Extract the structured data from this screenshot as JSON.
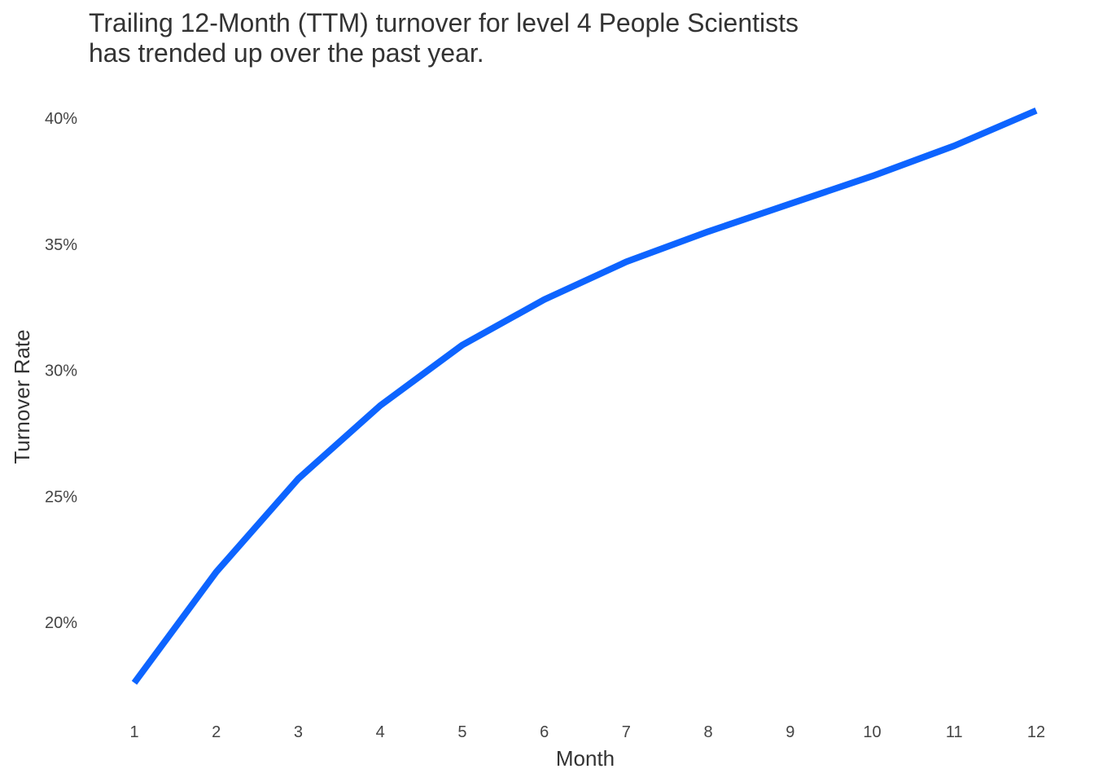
{
  "chart_data": {
    "type": "line",
    "title_lines": [
      "Trailing 12-Month (TTM) turnover for level 4 People Scientists",
      "has trended up over the past year."
    ],
    "xlabel": "Month",
    "ylabel": "Turnover Rate",
    "x": [
      1,
      2,
      3,
      4,
      5,
      6,
      7,
      8,
      9,
      10,
      11,
      12
    ],
    "series": [
      {
        "values": [
          0.176,
          0.22,
          0.257,
          0.286,
          0.31,
          0.328,
          0.343,
          0.355,
          0.366,
          0.377,
          0.389,
          0.403
        ],
        "color": "#0d64ff"
      }
    ],
    "x_ticks": [
      "1",
      "2",
      "3",
      "4",
      "5",
      "6",
      "7",
      "8",
      "9",
      "10",
      "11",
      "12"
    ],
    "y_ticks": [
      {
        "value": 0.2,
        "label": "20%"
      },
      {
        "value": 0.25,
        "label": "25%"
      },
      {
        "value": 0.3,
        "label": "30%"
      },
      {
        "value": 0.35,
        "label": "35%"
      },
      {
        "value": 0.4,
        "label": "40%"
      }
    ],
    "xlim": [
      1,
      12
    ],
    "ylim": [
      0.2,
      0.4
    ],
    "grid": false,
    "legend": "none"
  }
}
